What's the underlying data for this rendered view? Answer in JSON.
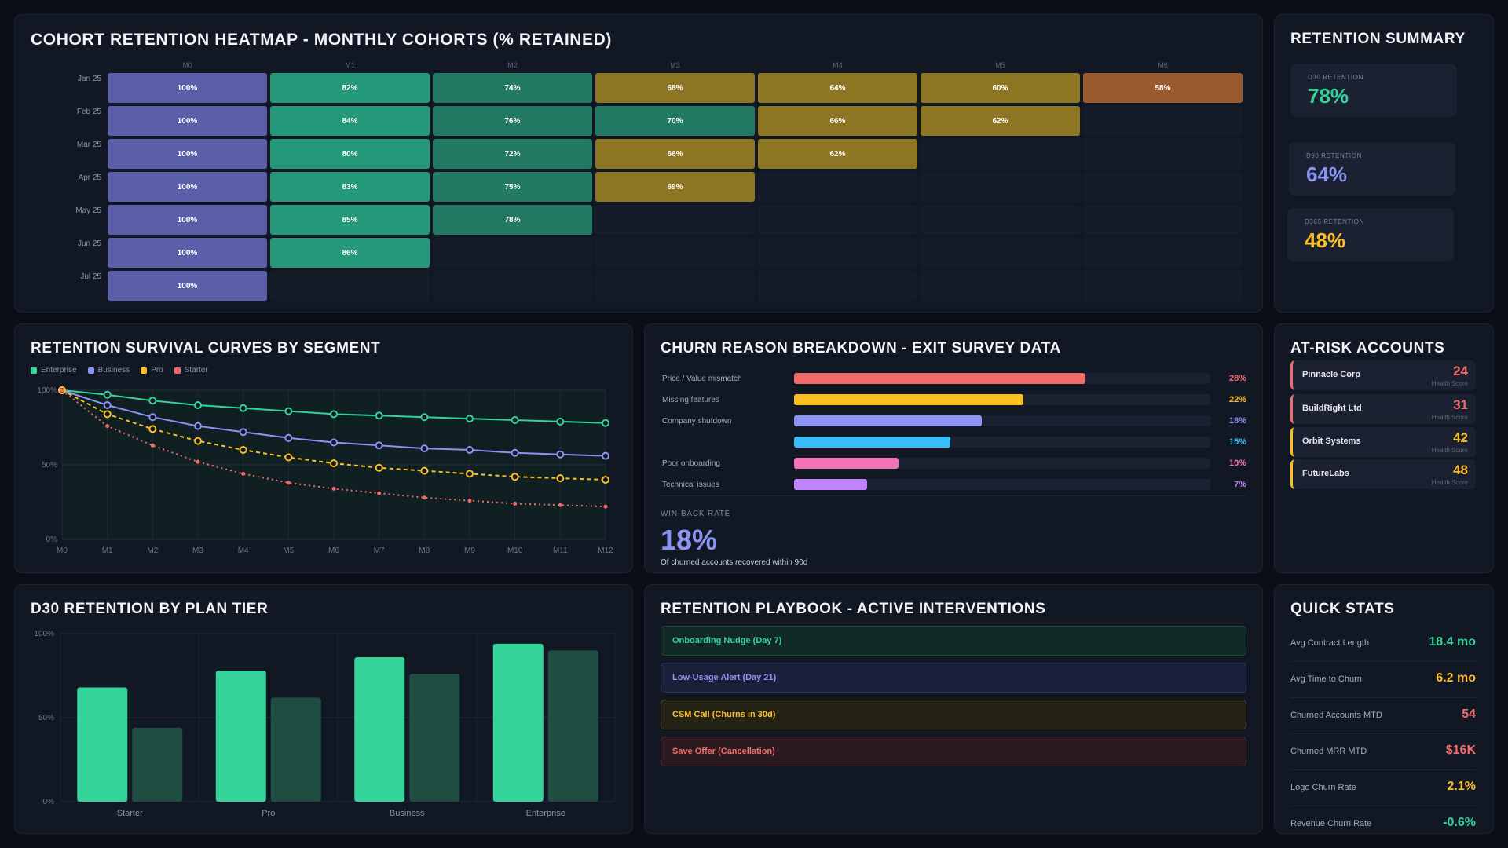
{
  "heatmap": {
    "title": "COHORT RETENTION HEATMAP - MONTHLY COHORTS (% RETAINED)",
    "columns": [
      "M0",
      "M1",
      "M2",
      "M3",
      "M4",
      "M5",
      "M6"
    ],
    "rows": [
      {
        "cohort": "Jan 25",
        "values": [
          "100%",
          "82%",
          "74%",
          "68%",
          "64%",
          "60%",
          "58%"
        ]
      },
      {
        "cohort": "Feb 25",
        "values": [
          "100%",
          "84%",
          "76%",
          "70%",
          "66%",
          "62%"
        ]
      },
      {
        "cohort": "Mar 25",
        "values": [
          "100%",
          "80%",
          "72%",
          "66%",
          "62%"
        ]
      },
      {
        "cohort": "Apr 25",
        "values": [
          "100%",
          "83%",
          "75%",
          "69%"
        ]
      },
      {
        "cohort": "May 25",
        "values": [
          "100%",
          "85%",
          "78%"
        ]
      },
      {
        "cohort": "Jun 25",
        "values": [
          "100%",
          "86%"
        ]
      },
      {
        "cohort": "Jul 25",
        "values": [
          "100%"
        ]
      }
    ],
    "colors": {
      "base": "#5b5ea8",
      "high": "#23997a",
      "mid": "#227a63",
      "low": "#8c7523",
      "lowest": "#9a5a30",
      "empty": "#161b28"
    }
  },
  "summary": {
    "title": "RETENTION SUMMARY",
    "cards": [
      {
        "label": "D30 RETENTION",
        "value": "78%",
        "color": "#34d399"
      },
      {
        "label": "D90 RETENTION",
        "value": "64%",
        "color": "#8b93f5"
      },
      {
        "label": "D365 RETENTION",
        "value": "48%",
        "color": "#fbbf24"
      }
    ]
  },
  "survival": {
    "title": "RETENTION SURVIVAL CURVES BY SEGMENT",
    "chart_data": {
      "type": "line",
      "x": [
        "M0",
        "M1",
        "M2",
        "M3",
        "M4",
        "M5",
        "M6",
        "M7",
        "M8",
        "M9",
        "M10",
        "M11",
        "M12"
      ],
      "ylim": [
        0,
        100
      ],
      "y_ticks": [
        "100%",
        "50%",
        "0%"
      ],
      "legend": "top-left",
      "series": [
        {
          "name": "Enterprise",
          "color": "#34d399",
          "dash": "",
          "values": [
            100,
            97,
            93,
            90,
            88,
            86,
            84,
            83,
            82,
            81,
            80,
            79,
            78
          ]
        },
        {
          "name": "Business",
          "color": "#8b93f5",
          "dash": "",
          "values": [
            100,
            90,
            82,
            76,
            72,
            68,
            65,
            63,
            61,
            60,
            58,
            57,
            56
          ]
        },
        {
          "name": "Pro",
          "color": "#fbbf24",
          "dash": "5,4",
          "values": [
            100,
            84,
            74,
            66,
            60,
            55,
            51,
            48,
            46,
            44,
            42,
            41,
            40
          ]
        },
        {
          "name": "Starter",
          "color": "#f26b6b",
          "dash": "2,4",
          "values": [
            100,
            76,
            63,
            52,
            44,
            38,
            34,
            31,
            28,
            26,
            24,
            23,
            22
          ]
        }
      ]
    }
  },
  "churn": {
    "title": "CHURN REASON BREAKDOWN - EXIT SURVEY DATA",
    "chart_data": {
      "type": "bar",
      "orientation": "horizontal",
      "categories": [
        "Price / Value mismatch",
        "Missing features",
        "Company shutdown",
        "",
        "Poor onboarding",
        "Technical issues"
      ],
      "values": [
        28,
        22,
        18,
        15,
        10,
        7
      ],
      "labels": [
        "28%",
        "22%",
        "18%",
        "15%",
        "10%",
        "7%"
      ],
      "colors": [
        "#f26b6b",
        "#fbbf24",
        "#8b93f5",
        "#38bdf8",
        "#f472b6",
        "#c084fc"
      ]
    },
    "winback_label": "WIN-BACK RATE",
    "winback_value": "18%",
    "winback_note": "Of churned accounts recovered within 90d"
  },
  "at_risk": {
    "title": "AT-RISK ACCOUNTS",
    "sub_label": "Health Score",
    "accounts": [
      {
        "name": "Pinnacle Corp",
        "score": "24",
        "color": "#f26b6b"
      },
      {
        "name": "BuildRight Ltd",
        "score": "31",
        "color": "#f26b6b"
      },
      {
        "name": "Orbit Systems",
        "score": "42",
        "color": "#fbbf24"
      },
      {
        "name": "FutureLabs",
        "score": "48",
        "color": "#fbbf24"
      }
    ]
  },
  "d30": {
    "title": "D30 RETENTION BY PLAN TIER",
    "chart_data": {
      "type": "bar",
      "categories": [
        "Starter",
        "Pro",
        "Business",
        "Enterprise"
      ],
      "series": [
        {
          "values": [
            68,
            78,
            86,
            94
          ],
          "color": "#34d399"
        },
        {
          "values": [
            44,
            62,
            76,
            90
          ],
          "color": "#1f4d42"
        }
      ],
      "ylim": [
        0,
        100
      ],
      "y_ticks": [
        "100%",
        "50%",
        "0%"
      ]
    }
  },
  "playbook": {
    "title": "RETENTION PLAYBOOK - ACTIVE INTERVENTIONS",
    "items": [
      {
        "label": "Onboarding Nudge (Day 7)",
        "color": "#34d399",
        "bg": "#122a26",
        "border": "#1f4a40"
      },
      {
        "label": "Low-Usage Alert (Day 21)",
        "color": "#8b93f5",
        "bg": "#1a1f3a",
        "border": "#2e3560"
      },
      {
        "label": "CSM Call (Churns in 30d)",
        "color": "#fbbf24",
        "bg": "#252216",
        "border": "#4a4224"
      },
      {
        "label": "Save Offer (Cancellation)",
        "color": "#f26b6b",
        "bg": "#2a1a1f",
        "border": "#4d2a30"
      }
    ]
  },
  "quick_stats": {
    "title": "QUICK STATS",
    "items": [
      {
        "label": "Avg Contract Length",
        "value": "18.4 mo",
        "color": "#34d399"
      },
      {
        "label": "Avg Time to Churn",
        "value": "6.2 mo",
        "color": "#fbbf24"
      },
      {
        "label": "Churned Accounts MTD",
        "value": "54",
        "color": "#f26b6b"
      },
      {
        "label": "Churned MRR MTD",
        "value": "$16K",
        "color": "#f26b6b"
      },
      {
        "label": "Logo Churn Rate",
        "value": "2.1%",
        "color": "#fbbf24"
      },
      {
        "label": "Revenue Churn Rate",
        "value": "-0.6%",
        "color": "#34d399"
      }
    ]
  }
}
